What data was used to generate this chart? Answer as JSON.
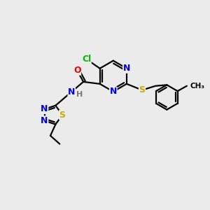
{
  "bg_color": "#ebebeb",
  "atom_colors": {
    "C": "#000000",
    "N": "#0000ee",
    "O": "#ee0000",
    "S": "#ccaa00",
    "Cl": "#00bb00",
    "H": "#777777"
  },
  "bond_color": "#000000",
  "bond_width": 1.6,
  "figsize": [
    3.0,
    3.0
  ],
  "dpi": 100
}
